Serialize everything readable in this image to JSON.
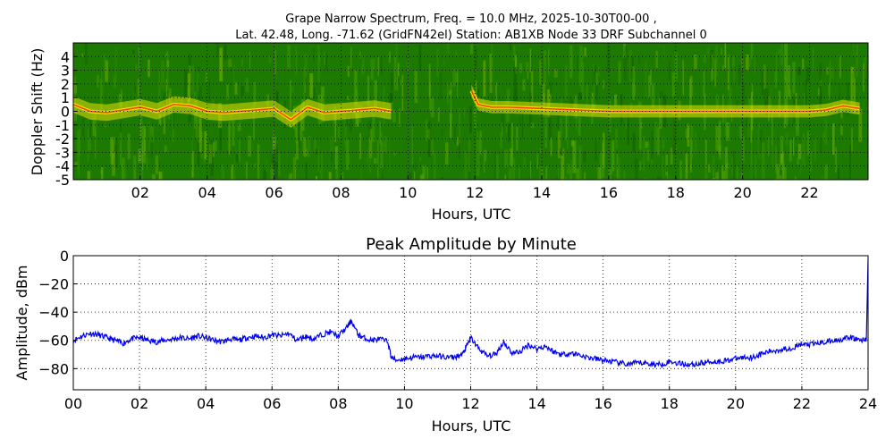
{
  "figure": {
    "title_line1": "Grape Narrow Spectrum, Freq. = 10.0 MHz, 2025-10-30T00-00 ,",
    "title_line2": "Lat.  42.48, Long. -71.62 (GridFN42el) Station: AB1XB Node 33 DRF Subchannel 0"
  },
  "chart_data": [
    {
      "type": "heatmap",
      "title": "",
      "xlabel": "Hours, UTC",
      "ylabel": "Doppler Shift (Hz)",
      "xlim": [
        0,
        23.75
      ],
      "ylim": [
        -5,
        5
      ],
      "x_ticks": [
        2,
        4,
        6,
        8,
        10,
        12,
        14,
        16,
        18,
        20,
        22
      ],
      "x_tick_labels": [
        "02",
        "04",
        "06",
        "08",
        "10",
        "12",
        "14",
        "16",
        "18",
        "20",
        "22"
      ],
      "y_ticks": [
        4,
        3,
        2,
        1,
        0,
        -1,
        -2,
        -3,
        -4,
        -5
      ],
      "y_tick_labels": [
        "4",
        "3",
        "2",
        "1",
        "0",
        "-1",
        "-2",
        "-3",
        "-4",
        "-5"
      ],
      "grid": true,
      "colors": {
        "background": "#1c7a00",
        "mid": "#6aa800",
        "high": "#e8e000",
        "peak": "#ff4000"
      },
      "carrier_trace": {
        "x": [
          0,
          0.5,
          1,
          1.5,
          2,
          2.5,
          3,
          3.5,
          4,
          4.5,
          5,
          5.5,
          6,
          6.5,
          7,
          7.5,
          8,
          8.5,
          9,
          9.5
        ],
        "y": [
          0.5,
          0.0,
          -0.1,
          0.1,
          0.3,
          0.0,
          0.5,
          0.4,
          0.0,
          -0.1,
          0.0,
          0.1,
          0.2,
          -0.6,
          0.3,
          -0.1,
          0.0,
          0.1,
          0.2,
          0.0
        ]
      },
      "carrier_trace_late": {
        "x": [
          11.9,
          12.1,
          12.5,
          13,
          14,
          15,
          16,
          17,
          18,
          19,
          20,
          21,
          22,
          22.5,
          23,
          23.5
        ],
        "y": [
          1.5,
          0.5,
          0.3,
          0.3,
          0.2,
          0.1,
          0.0,
          0.0,
          0.0,
          0.0,
          0.0,
          0.0,
          0.0,
          0.1,
          0.4,
          0.2
        ]
      }
    },
    {
      "type": "line",
      "title": "Peak Amplitude by Minute",
      "xlabel": "Hours, UTC",
      "ylabel": "Amplitude, dBm",
      "xlim": [
        0,
        24
      ],
      "ylim": [
        -95,
        0
      ],
      "x_ticks": [
        0,
        2,
        4,
        6,
        8,
        10,
        12,
        14,
        16,
        18,
        20,
        22,
        24
      ],
      "x_tick_labels": [
        "00",
        "02",
        "04",
        "06",
        "08",
        "10",
        "12",
        "14",
        "16",
        "18",
        "20",
        "22",
        "24"
      ],
      "y_ticks": [
        0,
        -20,
        -40,
        -60,
        -80
      ],
      "y_tick_labels": [
        "0",
        "−20",
        "−40",
        "−60",
        "−80"
      ],
      "grid": true,
      "line_color": "#0000ee",
      "series": [
        {
          "name": "Peak Amplitude",
          "x": [
            0,
            0.25,
            0.5,
            0.75,
            1,
            1.25,
            1.5,
            1.75,
            2,
            2.25,
            2.5,
            2.75,
            3,
            3.25,
            3.5,
            3.75,
            4,
            4.25,
            4.5,
            4.75,
            5,
            5.25,
            5.5,
            5.75,
            6,
            6.25,
            6.5,
            6.75,
            7,
            7.25,
            7.5,
            7.75,
            8,
            8.25,
            8.4,
            8.6,
            8.75,
            9,
            9.25,
            9.5,
            9.6,
            9.75,
            10,
            10.25,
            10.5,
            10.75,
            11,
            11.25,
            11.5,
            11.75,
            11.9,
            12,
            12.25,
            12.5,
            12.75,
            13,
            13.25,
            13.5,
            13.75,
            14,
            14.25,
            14.5,
            14.75,
            15,
            15.25,
            15.5,
            15.75,
            16,
            16.25,
            16.5,
            16.75,
            17,
            17.25,
            17.5,
            17.75,
            18,
            18.25,
            18.5,
            18.75,
            19,
            19.25,
            19.5,
            19.75,
            20,
            20.25,
            20.5,
            20.75,
            21,
            21.25,
            21.5,
            21.75,
            22,
            22.25,
            22.5,
            22.75,
            23,
            23.25,
            23.5,
            23.75,
            23.95,
            24
          ],
          "y": [
            -60,
            -57,
            -55,
            -56,
            -58,
            -60,
            -62,
            -59,
            -58,
            -60,
            -61,
            -60,
            -59,
            -58,
            -59,
            -57,
            -58,
            -60,
            -61,
            -59,
            -60,
            -58,
            -57,
            -58,
            -56,
            -57,
            -55,
            -60,
            -57,
            -59,
            -56,
            -54,
            -57,
            -51,
            -46,
            -56,
            -58,
            -60,
            -59,
            -61,
            -72,
            -74,
            -73,
            -72,
            -72,
            -71,
            -71,
            -72,
            -72,
            -70,
            -63,
            -58,
            -66,
            -71,
            -70,
            -61,
            -69,
            -68,
            -63,
            -66,
            -64,
            -68,
            -70,
            -69,
            -70,
            -72,
            -73,
            -74,
            -75,
            -76,
            -77,
            -76,
            -76,
            -77,
            -77,
            -75,
            -76,
            -77,
            -77,
            -76,
            -75,
            -75,
            -74,
            -73,
            -72,
            -72,
            -70,
            -68,
            -67,
            -66,
            -65,
            -63,
            -63,
            -62,
            -61,
            -60,
            -59,
            -58,
            -60,
            -59,
            -2
          ]
        }
      ]
    }
  ]
}
